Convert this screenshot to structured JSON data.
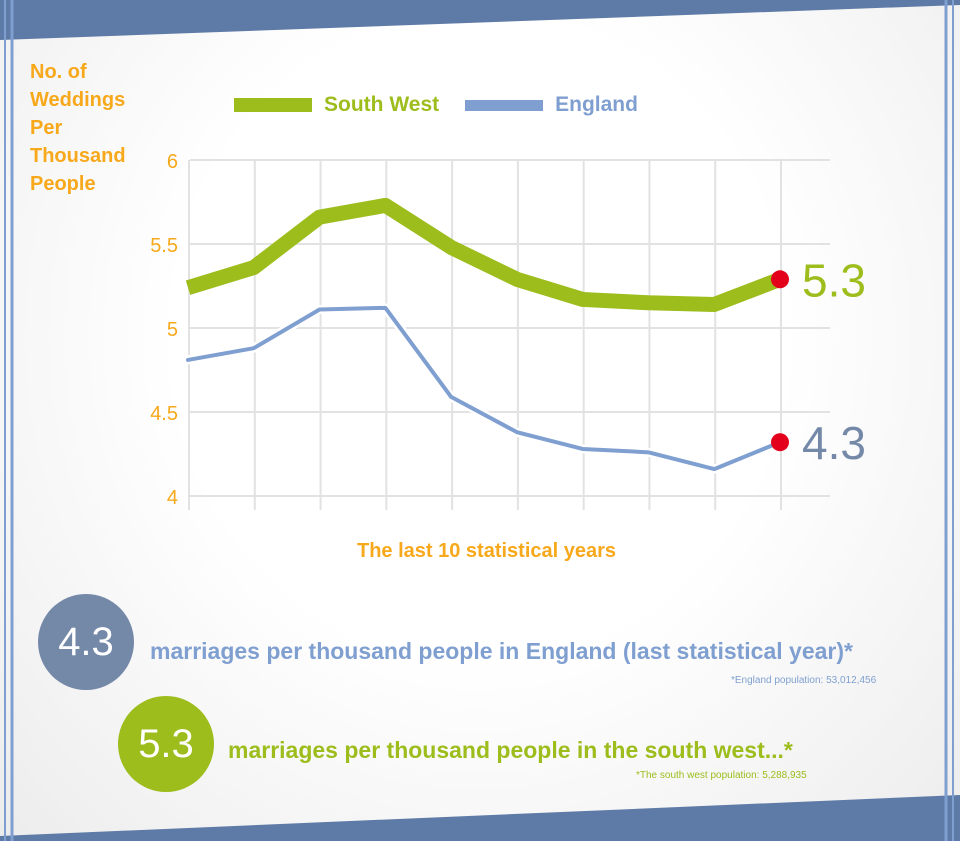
{
  "y_axis_title": [
    "No. of",
    "Weddings",
    "Per",
    "Thousand",
    "People"
  ],
  "legend": [
    {
      "label": "South West",
      "color": "#9cbd1c"
    },
    {
      "label": "England",
      "color": "#7f9fd0"
    }
  ],
  "stats": {
    "england": {
      "value": "4.3",
      "text": "marriages per thousand people in England (last statistical year)*",
      "note": "*England population: 53,012,456"
    },
    "south_west": {
      "value": "5.3",
      "text": "marriages per thousand people in the south west...*",
      "note": "*The south west population: 5,288,935"
    }
  },
  "colors": {
    "axis_text": "#f7a81b",
    "south_west": "#9cbd1c",
    "england": "#7f9fd0",
    "england_dark": "#7488a8",
    "endpoint": "#e3001b",
    "bars": "#5e7aa6"
  },
  "chart_data": {
    "type": "line",
    "xlabel": "The last 10 statistical years",
    "ylabel": "No. of Weddings Per Thousand People",
    "x": [
      1,
      2,
      3,
      4,
      5,
      6,
      7,
      8,
      9,
      10
    ],
    "ylim": [
      4,
      6
    ],
    "yticks": [
      "6",
      "5.5",
      "5",
      "4.5",
      "4"
    ],
    "grid": true,
    "legend_position": "top",
    "series": [
      {
        "name": "South West",
        "values": [
          5.24,
          5.36,
          5.66,
          5.73,
          5.48,
          5.29,
          5.17,
          5.15,
          5.14,
          5.29
        ],
        "end_label": "5.3"
      },
      {
        "name": "England",
        "values": [
          4.81,
          4.88,
          5.11,
          5.12,
          4.59,
          4.38,
          4.28,
          4.26,
          4.16,
          4.32
        ],
        "end_label": "4.3"
      }
    ]
  }
}
